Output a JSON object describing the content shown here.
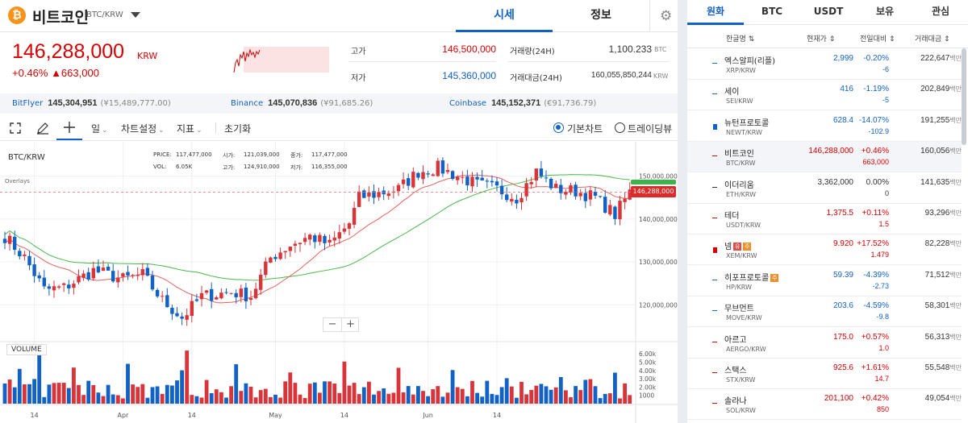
{
  "coin": {
    "icon": "bitcoin-icon",
    "name": "비트코인",
    "pair": "BTC/KRW"
  },
  "tabs": [
    "시세",
    "정보"
  ],
  "ticker": {
    "price": "146,288,000",
    "unit": "KRW",
    "change": "+0.46%  ▲663,000"
  },
  "stats": {
    "high_label": "고가",
    "high": "146,500,000",
    "low_label": "저가",
    "low": "145,360,000",
    "vol_label": "거래량(24H)",
    "vol": "1,100.233",
    "vol_unit": "BTC",
    "amt_label": "거래대금(24H)",
    "amt": "160,055,850,244",
    "amt_unit": "KRW"
  },
  "exchanges": [
    {
      "name": "BitFlyer",
      "price": "145,304,951",
      "krw": "(¥15,489,777.00)"
    },
    {
      "name": "Binance",
      "price": "145,070,836",
      "krw": "(¥91,685.26)"
    },
    {
      "name": "Coinbase",
      "price": "145,152,371",
      "krw": "(€91,736.79)"
    }
  ],
  "toolbar": {
    "interval": "일",
    "chart_settings": "차트설정",
    "indicators": "지표",
    "reset": "초기화",
    "basic": "기본차트",
    "tradingview": "트레이딩뷰"
  },
  "chart_data": {
    "type": "candlestick",
    "title": "BTC/KRW",
    "overlays_label": "Overlays",
    "legend": {
      "price_label": "PRICE:",
      "price": "117,477,000",
      "vol_label": "VOL:",
      "vol": "6.05K",
      "open_label": "시가:",
      "open": "121,039,000",
      "high_label": "고가:",
      "high": "124,910,000",
      "close_label": "종가:",
      "close": "117,477,000",
      "low_label": "저가:",
      "low": "116,355,000"
    },
    "y_ticks": [
      "150,000,000",
      "140,000,000",
      "130,000,000",
      "120,000,000"
    ],
    "y_tick_values": [
      150000000,
      140000000,
      130000000,
      120000000
    ],
    "ylim": [
      112000000,
      158000000
    ],
    "x_ticks": [
      "14",
      "Apr",
      "14",
      "May",
      "14",
      "Jun",
      "14"
    ],
    "x_tick_index": [
      6,
      24,
      38,
      55,
      69,
      86,
      100
    ],
    "vol_ticks": [
      "6.00k",
      "5.00k",
      "4.00k",
      "3.00k",
      "2.00k",
      "1000"
    ],
    "vol_tick_values": [
      6000,
      5000,
      4000,
      3000,
      2000,
      1000
    ],
    "vol_max": 6700,
    "current_price_tag": "146,288,000",
    "current_price": 146288000,
    "volume_label": "VOLUME",
    "colors": {
      "up": "#d9343a",
      "down": "#1261c4",
      "ma_short": "#e8605a",
      "ma_long": "#49b84a"
    }
  },
  "market_tabs": [
    "원화",
    "BTC",
    "USDT",
    "보유",
    "관심"
  ],
  "columns": [
    "한글명 ⇅",
    "현재가 ⇕",
    "전일대비 ⇕",
    "거래대금 ⇕"
  ],
  "coins": [
    {
      "name": "엑스알피(리플)",
      "pair": "XRP/KRW",
      "price": "2,999",
      "rate": "-0.20%",
      "amt": "-6",
      "vol": "222,647",
      "unit": "백만",
      "dir": "dn"
    },
    {
      "name": "세이",
      "pair": "SEI/KRW",
      "price": "416",
      "rate": "-1.19%",
      "amt": "-5",
      "vol": "202,849",
      "unit": "백만",
      "dir": "dn"
    },
    {
      "name": "뉴턴프로토콜",
      "pair": "NEWT/KRW",
      "price": "628.4",
      "rate": "-14.07%",
      "amt": "-102.9",
      "vol": "191,255",
      "unit": "백만",
      "dir": "dn"
    },
    {
      "name": "비트코인",
      "pair": "BTC/KRW",
      "price": "146,288,000",
      "rate": "+0.46%",
      "amt": "663,000",
      "vol": "160,056",
      "unit": "백만",
      "dir": "up"
    },
    {
      "name": "이더리움",
      "pair": "ETH/KRW",
      "price": "3,362,000",
      "rate": "0.00%",
      "amt": "0",
      "vol": "141,635",
      "unit": "백만",
      "dir": "flat"
    },
    {
      "name": "테더",
      "pair": "USDT/KRW",
      "price": "1,375.5",
      "rate": "+0.11%",
      "amt": "1.5",
      "vol": "93,296",
      "unit": "백만",
      "dir": "up"
    },
    {
      "name": "넴",
      "pair": "XEM/KRW",
      "price": "9.920",
      "rate": "+17.52%",
      "amt": "1.479",
      "vol": "82,228",
      "unit": "백만",
      "dir": "up",
      "badges": [
        "유",
        "주"
      ]
    },
    {
      "name": "히포프로토콜",
      "pair": "HP/KRW",
      "price": "59.39",
      "rate": "-4.39%",
      "amt": "-2.73",
      "vol": "71,512",
      "unit": "백만",
      "dir": "dn",
      "badges": [
        "주"
      ]
    },
    {
      "name": "무브먼트",
      "pair": "MOVE/KRW",
      "price": "203.6",
      "rate": "-4.59%",
      "amt": "-9.8",
      "vol": "58,301",
      "unit": "백만",
      "dir": "dn"
    },
    {
      "name": "아르고",
      "pair": "AERGO/KRW",
      "price": "175.0",
      "rate": "+0.57%",
      "amt": "1.0",
      "vol": "56,313",
      "unit": "백만",
      "dir": "up"
    },
    {
      "name": "스택스",
      "pair": "STX/KRW",
      "price": "925.6",
      "rate": "+1.61%",
      "amt": "14.7",
      "vol": "55,548",
      "unit": "백만",
      "dir": "up"
    },
    {
      "name": "솔라나",
      "pair": "SOL/KRW",
      "price": "201,100",
      "rate": "+0.42%",
      "amt": "850",
      "vol": "49,054",
      "unit": "백만",
      "dir": "up"
    }
  ]
}
